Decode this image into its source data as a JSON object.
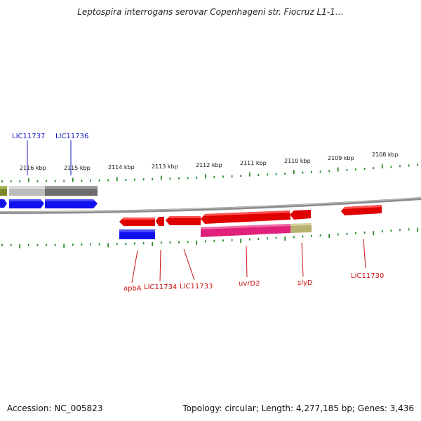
{
  "title": "Leptospira interrogans serovar Copenhageni str. Fiocruz L1-1…",
  "footer": {
    "accession": "Accession: NC_005823",
    "stats": "Topology: circular; Length: 4,277,185 bp; Genes: 3,436"
  },
  "colors": {
    "backbone": "#8c8c8c",
    "ticks": "#2a8a2a",
    "forward_label": "#1a1acc",
    "reverse_label": "#cc1111",
    "red_gene": "#e00000",
    "blue_gene": "#1010ee",
    "magenta_feature": "#e0207a",
    "khaki_feature": "#b8b070",
    "gray_feature": "#6e6e6e",
    "light_gray_feature": "#bcbcbc",
    "olive_feature": "#7a8a2a"
  },
  "scale_labels": [
    "2116 kbp",
    "2115 kbp",
    "2114 kbp",
    "2113 kbp",
    "2112 kbp",
    "2111 kbp",
    "2110 kbp",
    "2109 kbp",
    "2108 kbp"
  ],
  "gene_labels_top": [
    "LIC11737",
    "LIC11736"
  ],
  "gene_labels_bottom": [
    "apbA",
    "LIC11734",
    "LIC11733",
    "uvrD2",
    "slyD",
    "LIC11730"
  ]
}
